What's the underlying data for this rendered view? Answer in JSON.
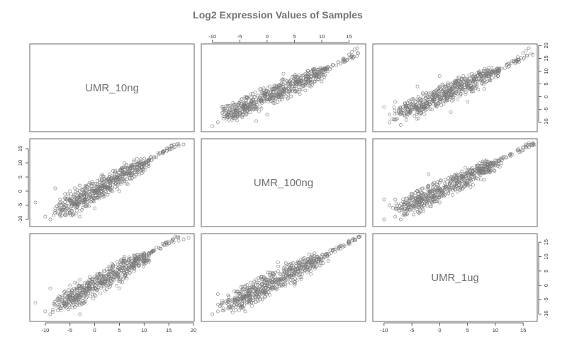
{
  "chart_data": {
    "type": "scatter",
    "title": "Log2 Expression Values of Samples",
    "variables": [
      "UMR_10ng",
      "UMR_100ng",
      "UMR_1ug"
    ],
    "ticks": {
      "top": [
        "-10",
        "-5",
        "0",
        "5",
        "10",
        "15"
      ],
      "bottom": [
        "-10",
        "-5",
        "0",
        "5",
        "10",
        "15",
        "20"
      ],
      "left": [
        "-10",
        "-5",
        "0",
        "5",
        "10",
        "15"
      ],
      "right_row1": [
        "-10",
        "-5",
        "0",
        "5",
        "10",
        "15",
        "20"
      ],
      "right_row3": [
        "-10",
        "-5",
        "0",
        "5",
        "10",
        "15"
      ],
      "bottom_col3": [
        "-10",
        "-5",
        "0",
        "5",
        "10",
        "15"
      ]
    },
    "ranges": {
      "UMR_10ng": [
        -12,
        19
      ],
      "UMR_100ng": [
        -11,
        17
      ],
      "UMR_1ug": [
        -11,
        16.5
      ]
    },
    "panels": [
      {
        "row": 0,
        "col": 1,
        "x": "UMR_100ng",
        "y": "UMR_10ng",
        "points": [
          [
            -10,
            -11.5
          ],
          [
            -9,
            -10
          ],
          [
            -8,
            -8.5
          ],
          [
            -7.5,
            -7.5
          ],
          [
            -6,
            -6
          ],
          [
            -6,
            -3
          ],
          [
            -5,
            -7
          ],
          [
            -5,
            -2
          ],
          [
            -4,
            -5
          ],
          [
            -4,
            0
          ],
          [
            -3,
            -3
          ],
          [
            -3,
            1
          ],
          [
            -2,
            -4
          ],
          [
            -2,
            -1
          ],
          [
            -1,
            -2
          ],
          [
            -1,
            2
          ],
          [
            0,
            -1
          ],
          [
            0,
            1
          ],
          [
            1,
            0
          ],
          [
            1,
            3
          ],
          [
            2,
            1
          ],
          [
            2,
            4
          ],
          [
            3,
            2
          ],
          [
            3,
            5
          ],
          [
            4,
            3
          ],
          [
            4,
            6
          ],
          [
            5,
            4
          ],
          [
            5,
            7
          ],
          [
            6,
            6
          ],
          [
            7,
            7
          ],
          [
            8,
            8
          ],
          [
            9,
            9
          ],
          [
            10,
            10.5
          ],
          [
            11,
            11.5
          ],
          [
            12,
            12.5
          ],
          [
            13,
            13.5
          ],
          [
            14,
            15
          ],
          [
            15,
            16.5
          ],
          [
            15.5,
            17.5
          ],
          [
            16,
            18.5
          ],
          [
            16.5,
            19
          ],
          [
            -7,
            -9
          ],
          [
            -2,
            -9.5
          ],
          [
            6,
            1
          ],
          [
            3,
            9
          ],
          [
            0,
            -7
          ],
          [
            8,
            4
          ],
          [
            10,
            6
          ]
        ]
      },
      {
        "row": 0,
        "col": 2,
        "x": "UMR_1ug",
        "y": "UMR_10ng",
        "points": [
          [
            -10,
            -4
          ],
          [
            -9,
            -7
          ],
          [
            -8,
            -9
          ],
          [
            -8,
            -2
          ],
          [
            -7,
            -6
          ],
          [
            -6,
            -4
          ],
          [
            -6,
            -9
          ],
          [
            -5,
            -3
          ],
          [
            -5,
            -1
          ],
          [
            -4,
            -5
          ],
          [
            -4,
            -1
          ],
          [
            -3,
            -2
          ],
          [
            -3,
            1
          ],
          [
            -2,
            -3
          ],
          [
            -2,
            0
          ],
          [
            -1,
            -1
          ],
          [
            -1,
            2
          ],
          [
            0,
            0
          ],
          [
            0,
            3
          ],
          [
            1,
            1
          ],
          [
            1,
            4
          ],
          [
            2,
            2
          ],
          [
            2,
            5
          ],
          [
            3,
            3
          ],
          [
            3,
            6
          ],
          [
            4,
            4
          ],
          [
            4,
            7
          ],
          [
            5,
            5
          ],
          [
            6,
            6
          ],
          [
            7,
            7
          ],
          [
            8,
            8
          ],
          [
            9,
            9
          ],
          [
            10,
            10
          ],
          [
            11,
            11
          ],
          [
            12,
            12.5
          ],
          [
            13,
            14
          ],
          [
            14,
            15.5
          ],
          [
            15,
            17
          ],
          [
            15.5,
            18
          ],
          [
            16,
            19
          ],
          [
            -9,
            -10
          ],
          [
            -7,
            -11
          ],
          [
            2,
            -6
          ],
          [
            5,
            -2
          ],
          [
            8,
            3
          ],
          [
            0,
            8
          ],
          [
            -4,
            4
          ]
        ]
      },
      {
        "row": 1,
        "col": 0,
        "x": "UMR_10ng",
        "y": "UMR_100ng",
        "points": [
          [
            -12,
            -4
          ],
          [
            -10,
            -9
          ],
          [
            -9,
            -10
          ],
          [
            -8,
            -6
          ],
          [
            -7,
            -3
          ],
          [
            -7,
            -8
          ],
          [
            -6,
            -5
          ],
          [
            -6,
            -1
          ],
          [
            -5,
            -3
          ],
          [
            -5,
            0
          ],
          [
            -4,
            -4
          ],
          [
            -4,
            1
          ],
          [
            -3,
            -2
          ],
          [
            -3,
            2
          ],
          [
            -2,
            -3
          ],
          [
            -2,
            1
          ],
          [
            -1,
            -1
          ],
          [
            -1,
            3
          ],
          [
            0,
            0
          ],
          [
            0,
            2
          ],
          [
            1,
            1
          ],
          [
            1,
            4
          ],
          [
            2,
            2
          ],
          [
            2,
            5
          ],
          [
            3,
            3
          ],
          [
            3,
            6
          ],
          [
            4,
            4
          ],
          [
            5,
            5
          ],
          [
            6,
            6
          ],
          [
            7,
            7
          ],
          [
            8,
            8
          ],
          [
            9,
            9
          ],
          [
            10,
            10
          ],
          [
            11,
            11
          ],
          [
            12,
            12
          ],
          [
            13,
            13
          ],
          [
            14,
            14
          ],
          [
            15,
            15
          ],
          [
            16,
            15.5
          ],
          [
            17,
            16
          ],
          [
            18,
            16.5
          ],
          [
            -8,
            1
          ],
          [
            -3,
            -9
          ],
          [
            5,
            0
          ],
          [
            6,
            10
          ],
          [
            0,
            -6
          ]
        ]
      },
      {
        "row": 1,
        "col": 2,
        "x": "UMR_1ug",
        "y": "UMR_100ng",
        "points": [
          [
            -10,
            -10
          ],
          [
            -9,
            -5
          ],
          [
            -8,
            -9
          ],
          [
            -8,
            -3
          ],
          [
            -7,
            -6
          ],
          [
            -6,
            -4
          ],
          [
            -6,
            -8
          ],
          [
            -5,
            -2
          ],
          [
            -5,
            -5
          ],
          [
            -4,
            -3
          ],
          [
            -4,
            0
          ],
          [
            -3,
            -1
          ],
          [
            -3,
            1
          ],
          [
            -2,
            -2
          ],
          [
            -2,
            2
          ],
          [
            -1,
            0
          ],
          [
            -1,
            3
          ],
          [
            0,
            1
          ],
          [
            0,
            3
          ],
          [
            1,
            2
          ],
          [
            1,
            4
          ],
          [
            2,
            3
          ],
          [
            2,
            5
          ],
          [
            3,
            4
          ],
          [
            3,
            6
          ],
          [
            4,
            5
          ],
          [
            4,
            7
          ],
          [
            5,
            6
          ],
          [
            6,
            7
          ],
          [
            7,
            8
          ],
          [
            8,
            9
          ],
          [
            9,
            10
          ],
          [
            10,
            11
          ],
          [
            11,
            11.5
          ],
          [
            12,
            12
          ],
          [
            13,
            13
          ],
          [
            14,
            14.5
          ],
          [
            15,
            15.5
          ],
          [
            15.5,
            16.5
          ],
          [
            16,
            17
          ],
          [
            -10,
            -3
          ],
          [
            -7,
            -10
          ],
          [
            0,
            -4
          ],
          [
            5,
            2
          ],
          [
            -2,
            6
          ],
          [
            8,
            4
          ]
        ]
      },
      {
        "row": 2,
        "col": 0,
        "x": "UMR_10ng",
        "y": "UMR_1ug",
        "points": [
          [
            -12,
            -6
          ],
          [
            -10,
            -9
          ],
          [
            -9,
            -10
          ],
          [
            -8,
            -7
          ],
          [
            -7,
            -4
          ],
          [
            -7,
            -8
          ],
          [
            -6,
            -5
          ],
          [
            -6,
            -2
          ],
          [
            -5,
            -3
          ],
          [
            -5,
            0
          ],
          [
            -4,
            -4
          ],
          [
            -4,
            1
          ],
          [
            -3,
            -2
          ],
          [
            -3,
            2
          ],
          [
            -2,
            -3
          ],
          [
            -2,
            1
          ],
          [
            -1,
            -1
          ],
          [
            -1,
            3
          ],
          [
            0,
            0
          ],
          [
            0,
            2
          ],
          [
            1,
            1
          ],
          [
            1,
            4
          ],
          [
            2,
            2
          ],
          [
            2,
            5
          ],
          [
            3,
            3
          ],
          [
            3,
            6
          ],
          [
            4,
            4
          ],
          [
            5,
            5
          ],
          [
            6,
            6
          ],
          [
            7,
            7
          ],
          [
            8,
            8
          ],
          [
            9,
            9
          ],
          [
            10,
            10
          ],
          [
            11,
            11
          ],
          [
            12,
            12
          ],
          [
            13,
            13
          ],
          [
            14,
            14
          ],
          [
            15,
            14.5
          ],
          [
            16,
            15
          ],
          [
            17,
            15.5
          ],
          [
            18,
            16
          ],
          [
            19,
            16.5
          ],
          [
            -9,
            -1
          ],
          [
            -3,
            -10
          ],
          [
            5,
            -1
          ],
          [
            6,
            10
          ]
        ]
      },
      {
        "row": 2,
        "col": 1,
        "x": "UMR_100ng",
        "y": "UMR_1ug",
        "points": [
          [
            -10,
            -10
          ],
          [
            -9,
            -9
          ],
          [
            -8,
            -6
          ],
          [
            -8,
            -8
          ],
          [
            -7,
            -4
          ],
          [
            -6,
            -5
          ],
          [
            -6,
            -2
          ],
          [
            -5,
            -3
          ],
          [
            -5,
            -7
          ],
          [
            -4,
            -4
          ],
          [
            -4,
            0
          ],
          [
            -3,
            -2
          ],
          [
            -3,
            1
          ],
          [
            -2,
            -3
          ],
          [
            -2,
            2
          ],
          [
            -1,
            -1
          ],
          [
            -1,
            3
          ],
          [
            0,
            0
          ],
          [
            0,
            2
          ],
          [
            1,
            1
          ],
          [
            1,
            4
          ],
          [
            2,
            2
          ],
          [
            2,
            5
          ],
          [
            3,
            3
          ],
          [
            3,
            6
          ],
          [
            4,
            4
          ],
          [
            4,
            7
          ],
          [
            5,
            5
          ],
          [
            6,
            6
          ],
          [
            7,
            7
          ],
          [
            8,
            8
          ],
          [
            9,
            9
          ],
          [
            10,
            10
          ],
          [
            11,
            11
          ],
          [
            12,
            12
          ],
          [
            13,
            13
          ],
          [
            14,
            14
          ],
          [
            15,
            15
          ],
          [
            15.5,
            15.5
          ],
          [
            16,
            16
          ],
          [
            -9,
            -3
          ],
          [
            -4,
            -9
          ],
          [
            5,
            0
          ],
          [
            2,
            8
          ],
          [
            8,
            4
          ]
        ]
      }
    ]
  }
}
